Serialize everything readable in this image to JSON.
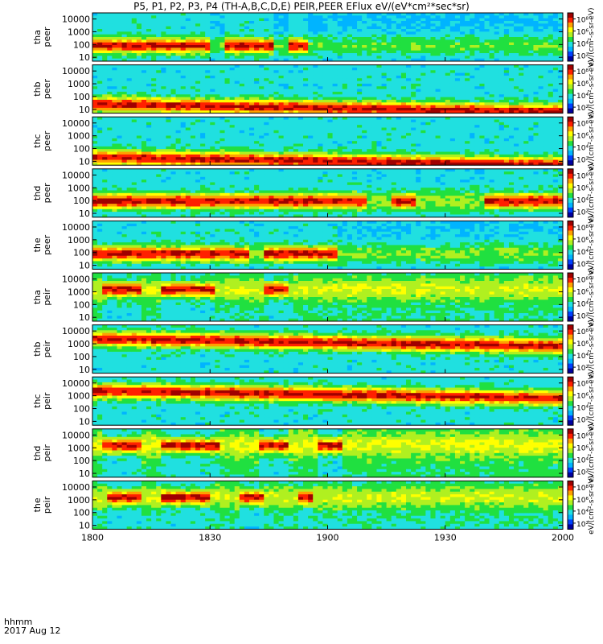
{
  "title": "P5, P1, P2, P3, P4 (TH-A,B,C,D,E) PEIR,PEER EFlux eV/(eV*cm²*sec*sr)",
  "time_axis": {
    "ticks": [
      "1800",
      "1830",
      "1900",
      "1930",
      "2000"
    ],
    "tick_values_min": [
      0,
      30,
      60,
      90,
      120
    ],
    "format_label": "hhmm",
    "date_label": "2017 Aug 12"
  },
  "colorbar": {
    "title": "eV/(cm²-s-sr-eV)",
    "ticks": [
      "10²",
      "10⁴",
      "10⁶",
      "10⁸"
    ],
    "tick_values_log": [
      2,
      4,
      6,
      8
    ],
    "range_log": [
      1,
      9
    ],
    "colormap": [
      "#0000a0",
      "#0040ff",
      "#00b4ff",
      "#20e0e0",
      "#20e040",
      "#b0f020",
      "#ffff00",
      "#ffa000",
      "#ff2000",
      "#a00000"
    ]
  },
  "chart_data": {
    "type": "heatmap",
    "x_unit": "minutes after 18:00 UT",
    "x_range": [
      0,
      120
    ],
    "y_scale": "log",
    "y_unit": "eV",
    "y_range": [
      5,
      30000
    ],
    "y_ticks": [
      "10",
      "100",
      "1000",
      "10000"
    ],
    "y_tick_values": [
      10,
      100,
      1000,
      10000
    ],
    "panels": [
      {
        "probe": "tha",
        "species": "peer",
        "label": "tha\npeer",
        "peak_energy": 80,
        "active_intervals": [
          [
            0,
            30
          ],
          [
            34,
            46
          ],
          [
            50,
            55
          ]
        ],
        "quiet_level": 3.2
      },
      {
        "probe": "thb",
        "species": "peer",
        "label": "thb\npeer",
        "peak_energy": 25,
        "active_intervals": [
          [
            0,
            120
          ]
        ],
        "quiet_level": 3.5
      },
      {
        "probe": "thc",
        "species": "peer",
        "label": "thc\npeer",
        "peak_energy": 20,
        "active_intervals": [
          [
            0,
            120
          ]
        ],
        "quiet_level": 3.0
      },
      {
        "probe": "thd",
        "species": "peer",
        "label": "thd\npeer",
        "peak_energy": 90,
        "active_intervals": [
          [
            0,
            70
          ],
          [
            76,
            82
          ],
          [
            100,
            120
          ]
        ],
        "quiet_level": 3.6
      },
      {
        "probe": "the",
        "species": "peer",
        "label": "the\npeer",
        "peak_energy": 80,
        "active_intervals": [
          [
            0,
            40
          ],
          [
            44,
            62
          ]
        ],
        "quiet_level": 3.4
      },
      {
        "probe": "tha",
        "species": "peir",
        "label": "tha\npeir",
        "peak_energy": 1500,
        "active_intervals": [
          [
            3,
            12
          ],
          [
            18,
            31
          ],
          [
            44,
            50
          ]
        ],
        "quiet_level": 4.2
      },
      {
        "probe": "thb",
        "species": "peir",
        "label": "thb\npeir",
        "peak_energy": 2500,
        "active_intervals": [
          [
            0,
            120
          ]
        ],
        "quiet_level": 3.0
      },
      {
        "probe": "thc",
        "species": "peir",
        "label": "thc\npeir",
        "peak_energy": 2500,
        "active_intervals": [
          [
            0,
            120
          ]
        ],
        "quiet_level": 3.0
      },
      {
        "probe": "thd",
        "species": "peir",
        "label": "thd\npeir",
        "peak_energy": 1500,
        "active_intervals": [
          [
            3,
            12
          ],
          [
            18,
            32
          ],
          [
            42,
            50
          ],
          [
            58,
            64
          ]
        ],
        "quiet_level": 4.4
      },
      {
        "probe": "the",
        "species": "peir",
        "label": "the\npeir",
        "peak_energy": 1500,
        "active_intervals": [
          [
            4,
            13
          ],
          [
            18,
            30
          ],
          [
            38,
            44
          ],
          [
            52,
            56
          ]
        ],
        "quiet_level": 4.1
      }
    ]
  }
}
